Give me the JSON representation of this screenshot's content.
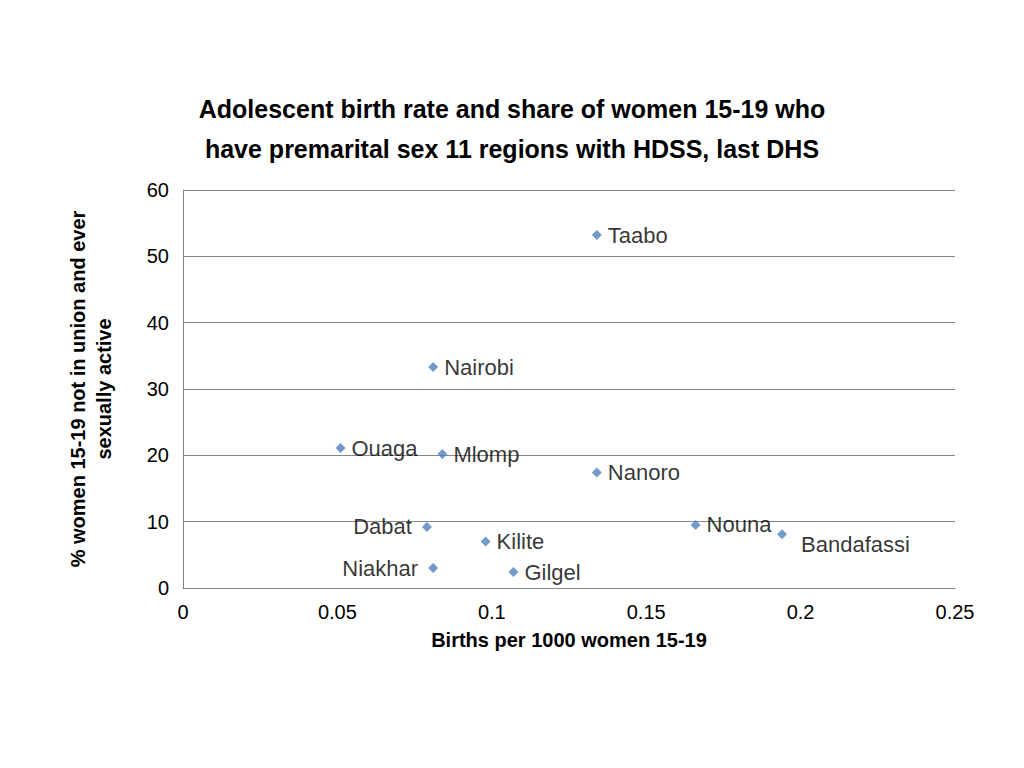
{
  "chart_data": {
    "type": "scatter",
    "title": "Adolescent birth rate and share of women 15-19 who\nhave premarital sex 11 regions with HDSS, last DHS",
    "x_label": "Births per 1000 women 15-19",
    "y_label": "% women 15-19 not in union and ever\nsexually active",
    "point_labels": [
      "Taabo",
      "Nairobi",
      "Ouaga",
      "Mlomp",
      "Nanoro",
      "Dabat",
      "Kilite",
      "Niakhar",
      "Gilgel",
      "Nouna",
      "Bandafassi"
    ],
    "x": [
      0.134,
      0.081,
      0.051,
      0.084,
      0.134,
      0.079,
      0.098,
      0.081,
      0.107,
      0.166,
      0.194
    ],
    "values": [
      53.2,
      33.3,
      21.1,
      20.2,
      17.4,
      9.2,
      7.0,
      3.0,
      2.4,
      9.5,
      8.1
    ],
    "color": "#4f81bd",
    "marker": "diamond",
    "xlim": [
      0,
      0.25
    ],
    "xticks": [
      0,
      0.05,
      0.1,
      0.15,
      0.2,
      0.25
    ],
    "ylim": [
      0,
      60
    ],
    "yticks": [
      0,
      10,
      20,
      30,
      40,
      50,
      60
    ],
    "grid": true
  }
}
